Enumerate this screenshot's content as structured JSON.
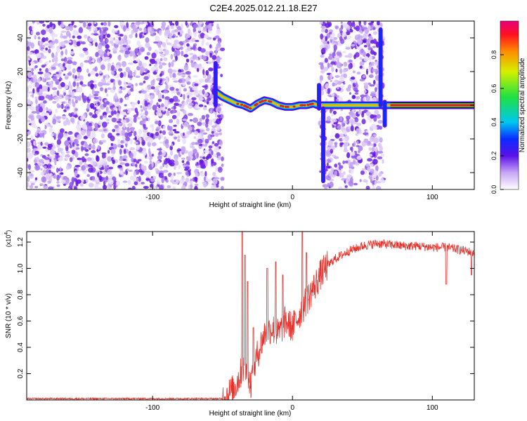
{
  "title": "C2E4.2025.012.21.18.E27",
  "chart_data": [
    {
      "type": "heatmap",
      "xlabel": "Height of straight line (km)",
      "ylabel": "Frequency (Hz)",
      "xlim": [
        -190,
        130
      ],
      "ylim": [
        -50,
        50
      ],
      "xticks": [
        -100,
        0,
        100
      ],
      "yticks": [
        -40,
        -20,
        0,
        20,
        40
      ],
      "colorbar": {
        "label": "Normalized spectral amplitude",
        "range": [
          0,
          1
        ],
        "ticks": [
          0.0,
          0.2,
          0.4,
          0.6,
          0.8
        ],
        "tick_labels": [
          "0.0",
          "0.2",
          "0.4",
          "0.6",
          "0.8"
        ]
      },
      "noise_regions": [
        {
          "x": [
            -190,
            -50
          ],
          "y": [
            -50,
            50
          ]
        },
        {
          "x": [
            20,
            65
          ],
          "y": [
            -50,
            50
          ]
        }
      ],
      "carrier_track": {
        "x": [
          -55,
          -50,
          -45,
          -40,
          -35,
          -30,
          -25,
          -20,
          -15,
          -10,
          -5,
          0,
          5,
          10,
          15,
          18,
          70,
          130
        ],
        "y": [
          8,
          5,
          3,
          1,
          0,
          -2,
          1,
          3,
          2,
          0,
          -1,
          -1,
          0,
          0,
          1,
          0,
          0,
          0
        ]
      },
      "spikes": [
        {
          "x": -55,
          "y": [
            0,
            25
          ]
        },
        {
          "x": 19,
          "y": [
            -2,
            12
          ]
        },
        {
          "x": 22,
          "y": [
            -45,
            -2
          ]
        },
        {
          "x": 63,
          "y": [
            0,
            45
          ]
        },
        {
          "x": 66,
          "y": [
            -12,
            2
          ]
        }
      ],
      "stable_tone": {
        "x": [
          70,
          130
        ],
        "y": 0
      }
    },
    {
      "type": "line",
      "xlabel": "Height of straight line (km)",
      "ylabel": "SNR (10 * v/v)",
      "multiplier": "(x10",
      "multiplier_exp": "4",
      "xlim": [
        -190,
        130
      ],
      "ylim": [
        0,
        1.28
      ],
      "xticks": [
        -100,
        0,
        100
      ],
      "yticks": [
        0.2,
        0.4,
        0.6,
        0.8,
        1.0,
        1.2
      ],
      "ytick_labels": [
        "0.2",
        "0.4",
        "0.6",
        "0.8",
        "1.0",
        "1.2"
      ],
      "series_color": "#e8302a",
      "trend": {
        "x": [
          -190,
          -50,
          -42,
          -35,
          -30,
          -25,
          -20,
          -15,
          -10,
          -5,
          0,
          5,
          10,
          15,
          20,
          25,
          30,
          40,
          50,
          60,
          70,
          80,
          90,
          100,
          110,
          120,
          130
        ],
        "y": [
          0.01,
          0.01,
          0.08,
          0.25,
          0.12,
          0.35,
          0.5,
          0.55,
          0.5,
          0.6,
          0.55,
          0.65,
          0.75,
          0.85,
          0.95,
          1.02,
          1.07,
          1.13,
          1.17,
          1.19,
          1.18,
          1.17,
          1.17,
          1.16,
          1.16,
          1.14,
          1.12
        ]
      },
      "peaks": [
        {
          "x": -36,
          "y": 1.28
        },
        {
          "x": -34,
          "y": 1.1
        },
        {
          "x": -32,
          "y": 0.9
        },
        {
          "x": -28,
          "y": 0.55
        },
        {
          "x": -18,
          "y": 1.0
        },
        {
          "x": -12,
          "y": 1.05
        },
        {
          "x": -7,
          "y": 0.95
        },
        {
          "x": 7,
          "y": 1.28
        },
        {
          "x": 10,
          "y": 1.12
        },
        {
          "x": 110,
          "y": 0.88
        },
        {
          "x": 128,
          "y": 0.95
        }
      ]
    }
  ]
}
